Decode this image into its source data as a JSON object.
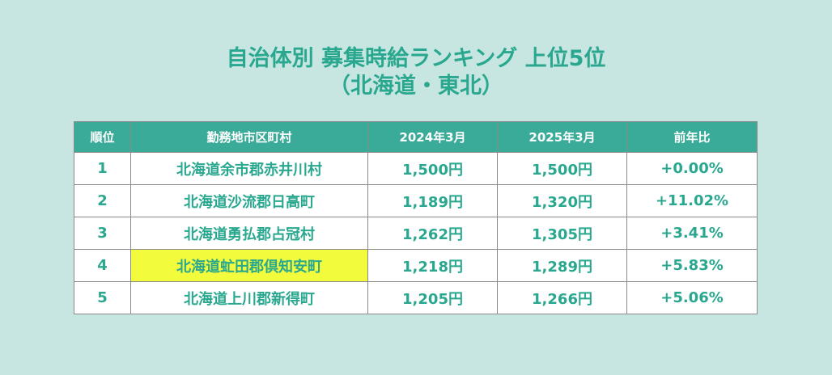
{
  "title": {
    "line1": "自治体別 募集時給ランキング 上位5位",
    "line2": "（北海道・東北）"
  },
  "table": {
    "headers": [
      "順位",
      "勤務地市区町村",
      "2024年3月",
      "2025年3月",
      "前年比"
    ],
    "rows": [
      {
        "rank": "1",
        "municipality": "北海道余市郡赤井川村",
        "wage_2024": "1,500円",
        "wage_2025": "1,500円",
        "change": "+0.00%"
      },
      {
        "rank": "2",
        "municipality": "北海道沙流郡日高町",
        "wage_2024": "1,189円",
        "wage_2025": "1,320円",
        "change": "+11.02%"
      },
      {
        "rank": "3",
        "municipality": "北海道勇払郡占冠村",
        "wage_2024": "1,262円",
        "wage_2025": "1,305円",
        "change": "+3.41%"
      },
      {
        "rank": "4",
        "municipality": "北海道虻田郡倶知安町",
        "wage_2024": "1,218円",
        "wage_2025": "1,289円",
        "change": "+5.83%"
      },
      {
        "rank": "5",
        "municipality": "北海道上川郡新得町",
        "wage_2024": "1,205円",
        "wage_2025": "1,266円",
        "change": "+5.06%"
      }
    ],
    "highlighted_cell": {
      "row": 4,
      "column": "municipality"
    }
  },
  "colors": {
    "background": "#c8e6e1",
    "accent_text": "#2aa88f",
    "header_background": "#3aab98",
    "header_text": "#ffffff",
    "highlight": "#f2fb3c",
    "cell_background": "#ffffff",
    "border": "#8a8a8a"
  }
}
